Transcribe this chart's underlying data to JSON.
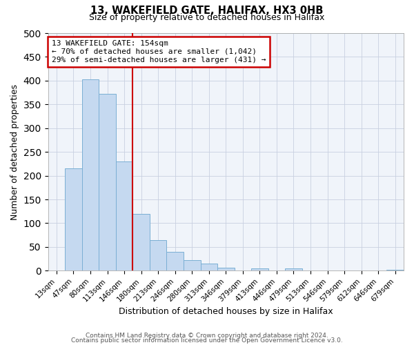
{
  "title": "13, WAKEFIELD GATE, HALIFAX, HX3 0HB",
  "subtitle": "Size of property relative to detached houses in Halifax",
  "xlabel": "Distribution of detached houses by size in Halifax",
  "ylabel": "Number of detached properties",
  "bar_labels": [
    "13sqm",
    "47sqm",
    "80sqm",
    "113sqm",
    "146sqm",
    "180sqm",
    "213sqm",
    "246sqm",
    "280sqm",
    "313sqm",
    "346sqm",
    "379sqm",
    "413sqm",
    "446sqm",
    "479sqm",
    "513sqm",
    "546sqm",
    "579sqm",
    "612sqm",
    "646sqm",
    "679sqm"
  ],
  "bar_values": [
    0,
    215,
    403,
    372,
    230,
    120,
    65,
    40,
    22,
    15,
    7,
    0,
    5,
    0,
    5,
    0,
    0,
    0,
    0,
    0,
    2
  ],
  "bar_color": "#c5d9f0",
  "bar_edge_color": "#7aafd4",
  "vline_color": "#cc0000",
  "annotation_title": "13 WAKEFIELD GATE: 154sqm",
  "annotation_line1": "← 70% of detached houses are smaller (1,042)",
  "annotation_line2": "29% of semi-detached houses are larger (431) →",
  "ylim": [
    0,
    500
  ],
  "yticks": [
    0,
    50,
    100,
    150,
    200,
    250,
    300,
    350,
    400,
    450,
    500
  ],
  "grid_color": "#c8d0e0",
  "bg_color": "#f0f4fa",
  "footer1": "Contains HM Land Registry data © Crown copyright and database right 2024.",
  "footer2": "Contains public sector information licensed under the Open Government Licence v3.0."
}
